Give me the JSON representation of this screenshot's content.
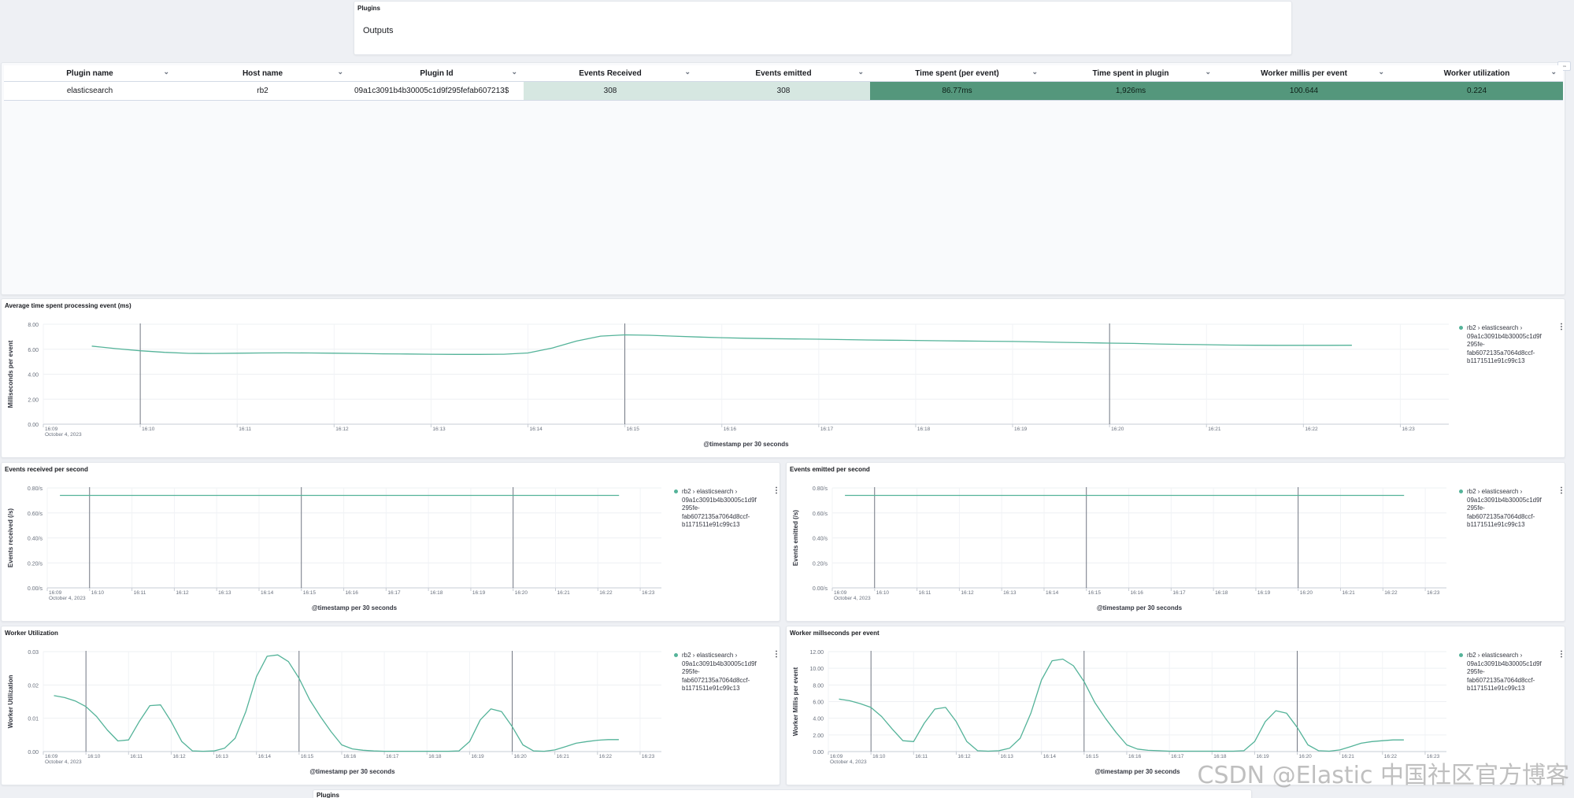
{
  "plugins_panel": {
    "title": "Plugins",
    "section": "Outputs"
  },
  "table": {
    "columns": [
      "Plugin name",
      "Host name",
      "Plugin Id",
      "Events Received",
      "Events emitted",
      "Time spent (per event)",
      "Time spent in plugin",
      "Worker millis per event",
      "Worker utilization"
    ],
    "row": [
      "elasticsearch",
      "rb2",
      "09a1c3091b4b30005c1d9f295fefab607213$",
      "308",
      "308",
      "86.77ms",
      "1,926ms",
      "100.644",
      "0.224"
    ],
    "cell_colors": [
      "#ffffff",
      "#ffffff",
      "#ffffff",
      "#d6e7e1",
      "#d6e7e1",
      "#54977c",
      "#54977c",
      "#54977c",
      "#54977c"
    ],
    "corner_button": "⇔"
  },
  "legend": {
    "entry": "rb2 › elasticsearch › 09a1c3091b4b30005c1d9f 295fe- fab6072135a7064d8ccf- b1171511e91c99c13",
    "lines": [
      "rb2 › elasticsearch ›",
      "09a1c3091b4b30005c1d9f",
      "295fe-",
      "fab6072135a7064d8ccf-",
      "b1171511e91c99c13"
    ],
    "menu": "⋮",
    "series_color": "#54b399"
  },
  "xaxis": {
    "label": "@timestamp per 30 seconds",
    "ticks": [
      "16:09",
      "16:10",
      "16:11",
      "16:12",
      "16:13",
      "16:14",
      "16:15",
      "16:16",
      "16:17",
      "16:18",
      "16:19",
      "16:20",
      "16:21",
      "16:22",
      "16:23"
    ],
    "date": "October 4, 2023"
  },
  "chart_data": [
    {
      "id": "avg",
      "type": "line",
      "title": "Average time spent processing event (ms)",
      "xlabel": "@timestamp per 30 seconds",
      "ylabel": "Milliseconds per event",
      "y_ticks": [
        "0.00",
        "2.00",
        "4.00",
        "6.00",
        "8.00"
      ],
      "ylim": [
        0,
        8
      ],
      "series": [
        {
          "name": "rb2 › elasticsearch › 09a1c3091b4b30005c1d9f295fe-fab6072135a7064d8ccf-b1171511e91c99c13",
          "x": [
            0.5,
            0.75,
            1,
            1.25,
            1.5,
            1.75,
            2,
            2.25,
            2.5,
            2.75,
            3,
            3.25,
            3.5,
            3.75,
            4,
            4.25,
            4.5,
            4.75,
            5,
            5.25,
            5.5,
            5.75,
            6,
            6.25,
            6.5,
            6.75,
            7,
            7.25,
            7.5,
            7.75,
            8,
            8.25,
            8.5,
            8.75,
            9,
            9.25,
            9.5,
            9.75,
            10,
            10.25,
            10.5,
            10.75,
            11,
            11.25,
            11.5,
            11.75,
            12,
            12.25,
            12.5,
            12.75,
            13,
            13.25,
            13.5
          ],
          "values": [
            6.25,
            6.05,
            5.88,
            5.75,
            5.67,
            5.66,
            5.68,
            5.7,
            5.71,
            5.7,
            5.68,
            5.66,
            5.63,
            5.62,
            5.6,
            5.59,
            5.59,
            5.6,
            5.7,
            6.1,
            6.65,
            7.05,
            7.15,
            7.12,
            7.05,
            6.98,
            6.92,
            6.88,
            6.85,
            6.82,
            6.8,
            6.77,
            6.74,
            6.72,
            6.7,
            6.68,
            6.66,
            6.64,
            6.62,
            6.59,
            6.55,
            6.52,
            6.49,
            6.46,
            6.42,
            6.39,
            6.36,
            6.33,
            6.32,
            6.31,
            6.31,
            6.31,
            6.32
          ]
        }
      ]
    },
    {
      "id": "recv",
      "type": "line",
      "title": "Events received per second",
      "xlabel": "@timestamp per 30 seconds",
      "ylabel": "Events received (/s)",
      "y_ticks": [
        "0.00/s",
        "0.20/s",
        "0.40/s",
        "0.60/s",
        "0.80/s"
      ],
      "ylim": [
        0,
        0.8
      ],
      "series": [
        {
          "name": "rb2 › elasticsearch › 09a1c3091b4b30005c1d9f295fe-fab6072135a7064d8ccf-b1171511e91c99c13",
          "x": [
            0.3,
            13.5
          ],
          "values": [
            0.74,
            0.74
          ]
        }
      ]
    },
    {
      "id": "emit",
      "type": "line",
      "title": "Events emitted per second",
      "xlabel": "@timestamp per 30 seconds",
      "ylabel": "Events emitted (/s)",
      "y_ticks": [
        "0.00/s",
        "0.20/s",
        "0.40/s",
        "0.60/s",
        "0.80/s"
      ],
      "ylim": [
        0,
        0.8
      ],
      "series": [
        {
          "name": "rb2 › elasticsearch › 09a1c3091b4b30005c1d9f295fe-fab6072135a7064d8ccf-b1171511e91c99c13",
          "x": [
            0.3,
            13.5
          ],
          "values": [
            0.74,
            0.74
          ]
        }
      ]
    },
    {
      "id": "wu",
      "type": "line",
      "title": "Worker Utilization",
      "xlabel": "@timestamp per 30 seconds",
      "ylabel": "Worker Utilization",
      "y_ticks": [
        "0.00",
        "0.01",
        "0.02",
        "0.03"
      ],
      "ylim": [
        0,
        0.03
      ],
      "series": [
        {
          "name": "rb2 › elasticsearch › 09a1c3091b4b30005c1d9f295fe-fab6072135a7064d8ccf-b1171511e91c99c13",
          "x": [
            0.25,
            0.5,
            0.75,
            1,
            1.25,
            1.5,
            1.75,
            2,
            2.25,
            2.5,
            2.75,
            3,
            3.25,
            3.5,
            3.75,
            4,
            4.25,
            4.5,
            4.75,
            5,
            5.25,
            5.5,
            5.75,
            6,
            6.25,
            6.5,
            6.75,
            7,
            7.25,
            7.5,
            7.75,
            8,
            8.25,
            8.5,
            8.75,
            9,
            9.25,
            9.5,
            9.75,
            10,
            10.25,
            10.5,
            10.75,
            11,
            11.25,
            11.5,
            11.75,
            12,
            12.25,
            12.5,
            12.75,
            13,
            13.25,
            13.5
          ],
          "values": [
            0.0168,
            0.0162,
            0.0152,
            0.0135,
            0.0105,
            0.0065,
            0.0032,
            0.0035,
            0.009,
            0.0138,
            0.014,
            0.009,
            0.003,
            0.0002,
            0.0001,
            0.0002,
            0.001,
            0.004,
            0.012,
            0.0225,
            0.0286,
            0.029,
            0.027,
            0.022,
            0.0155,
            0.0105,
            0.006,
            0.002,
            0.0008,
            0.0004,
            0.0002,
            0.0001,
            0.0001,
            0.0001,
            0.0001,
            0.0001,
            0.0001,
            0.0001,
            0.0002,
            0.003,
            0.0095,
            0.0128,
            0.012,
            0.0075,
            0.002,
            0.0002,
            0.0001,
            0.0005,
            0.0015,
            0.0025,
            0.003,
            0.0034,
            0.0036,
            0.0036
          ]
        }
      ]
    },
    {
      "id": "wm",
      "type": "line",
      "title": "Worker millseconds per event",
      "xlabel": "@timestamp per 30 seconds",
      "ylabel": "Worker Millis per event",
      "y_ticks": [
        "0.00",
        "2.00",
        "4.00",
        "6.00",
        "8.00",
        "10.00",
        "12.00"
      ],
      "ylim": [
        0,
        12
      ],
      "series": [
        {
          "name": "rb2 › elasticsearch › 09a1c3091b4b30005c1d9f295fe-fab6072135a7064d8ccf-b1171511e91c99c13",
          "x": [
            0.25,
            0.5,
            0.75,
            1,
            1.25,
            1.5,
            1.75,
            2,
            2.25,
            2.5,
            2.75,
            3,
            3.25,
            3.5,
            3.75,
            4,
            4.25,
            4.5,
            4.75,
            5,
            5.25,
            5.5,
            5.75,
            6,
            6.25,
            6.5,
            6.75,
            7,
            7.25,
            7.5,
            7.75,
            8,
            8.25,
            8.5,
            8.75,
            9,
            9.25,
            9.5,
            9.75,
            10,
            10.25,
            10.5,
            10.75,
            11,
            11.25,
            11.5,
            11.75,
            12,
            12.25,
            12.5,
            12.75,
            13,
            13.25,
            13.5
          ],
          "values": [
            6.3,
            6.1,
            5.75,
            5.3,
            4.2,
            2.7,
            1.3,
            1.2,
            3.4,
            5.1,
            5.3,
            3.6,
            1.2,
            0.1,
            0.05,
            0.1,
            0.4,
            1.6,
            4.6,
            8.6,
            10.9,
            11.1,
            10.3,
            8.4,
            5.9,
            4.0,
            2.3,
            0.8,
            0.3,
            0.15,
            0.1,
            0.05,
            0.05,
            0.05,
            0.05,
            0.05,
            0.05,
            0.05,
            0.1,
            1.2,
            3.6,
            4.9,
            4.6,
            2.9,
            0.8,
            0.1,
            0.05,
            0.2,
            0.6,
            1.0,
            1.2,
            1.3,
            1.4,
            1.4
          ]
        }
      ]
    }
  ],
  "bottom_panel": {
    "title": "Plugins"
  },
  "watermark": "CSDN @Elastic 中国社区官方博客"
}
